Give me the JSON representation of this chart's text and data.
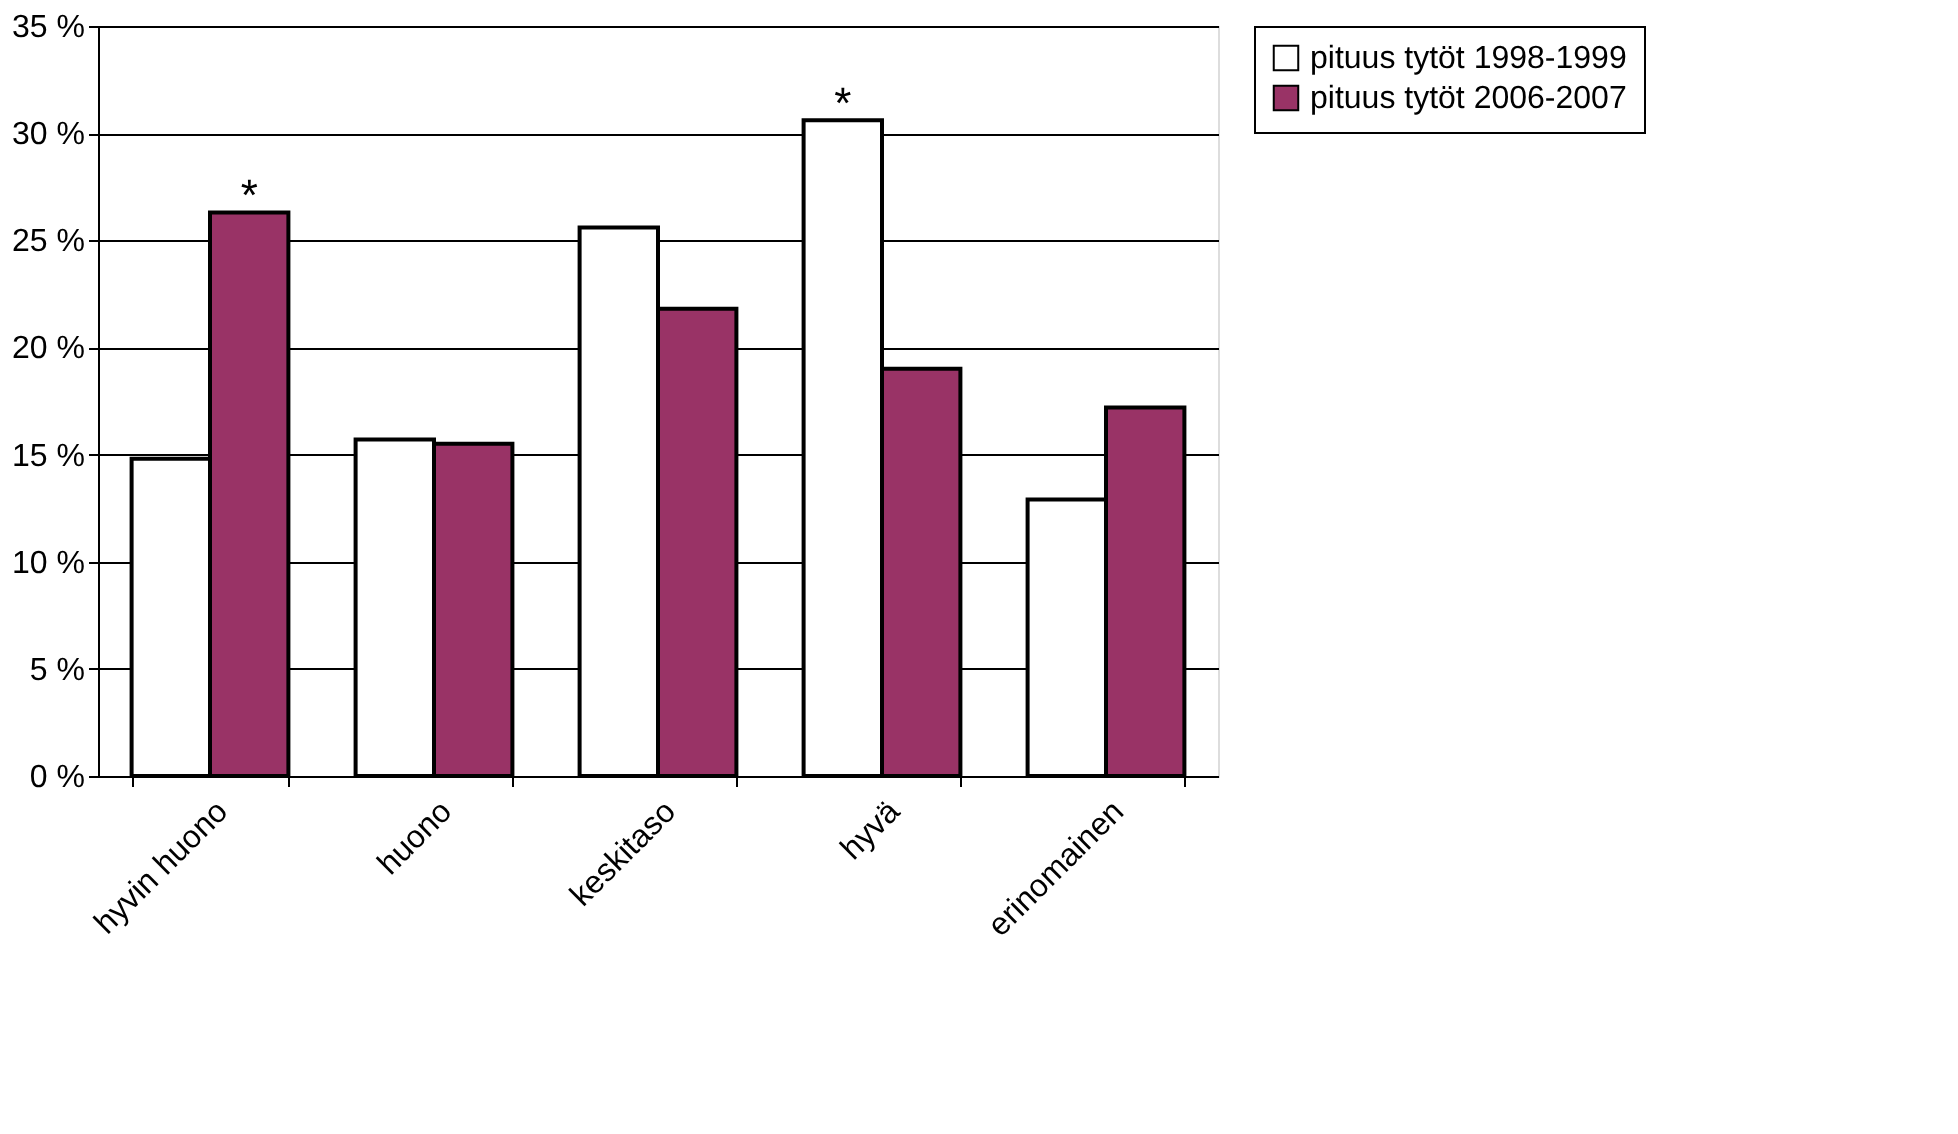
{
  "chart_data": {
    "type": "bar",
    "categories": [
      "hyvin huono",
      "huono",
      "keskitaso",
      "hyvä",
      "erinomainen"
    ],
    "series": [
      {
        "name": "pituus tytöt 1998-1999",
        "color": "#ffffff",
        "values": [
          14.8,
          15.7,
          25.6,
          30.6,
          12.9
        ],
        "value_labels": [
          null,
          null,
          null,
          "*",
          null
        ]
      },
      {
        "name": "pituus tytöt 2006-2007",
        "color": "#993366",
        "values": [
          26.3,
          15.5,
          21.8,
          19.0,
          17.2
        ],
        "value_labels": [
          "*",
          null,
          null,
          null,
          null
        ]
      }
    ],
    "ylim": [
      0,
      35
    ],
    "yticks": [
      {
        "value": 0,
        "label": "0 %"
      },
      {
        "value": 5,
        "label": "5 %"
      },
      {
        "value": 10,
        "label": "10 %"
      },
      {
        "value": 15,
        "label": "15 %"
      },
      {
        "value": 20,
        "label": "20 %"
      },
      {
        "value": 25,
        "label": "25 %"
      },
      {
        "value": 30,
        "label": "30 %"
      },
      {
        "value": 35,
        "label": "35 %"
      }
    ],
    "grid": "y",
    "legend": "right"
  }
}
